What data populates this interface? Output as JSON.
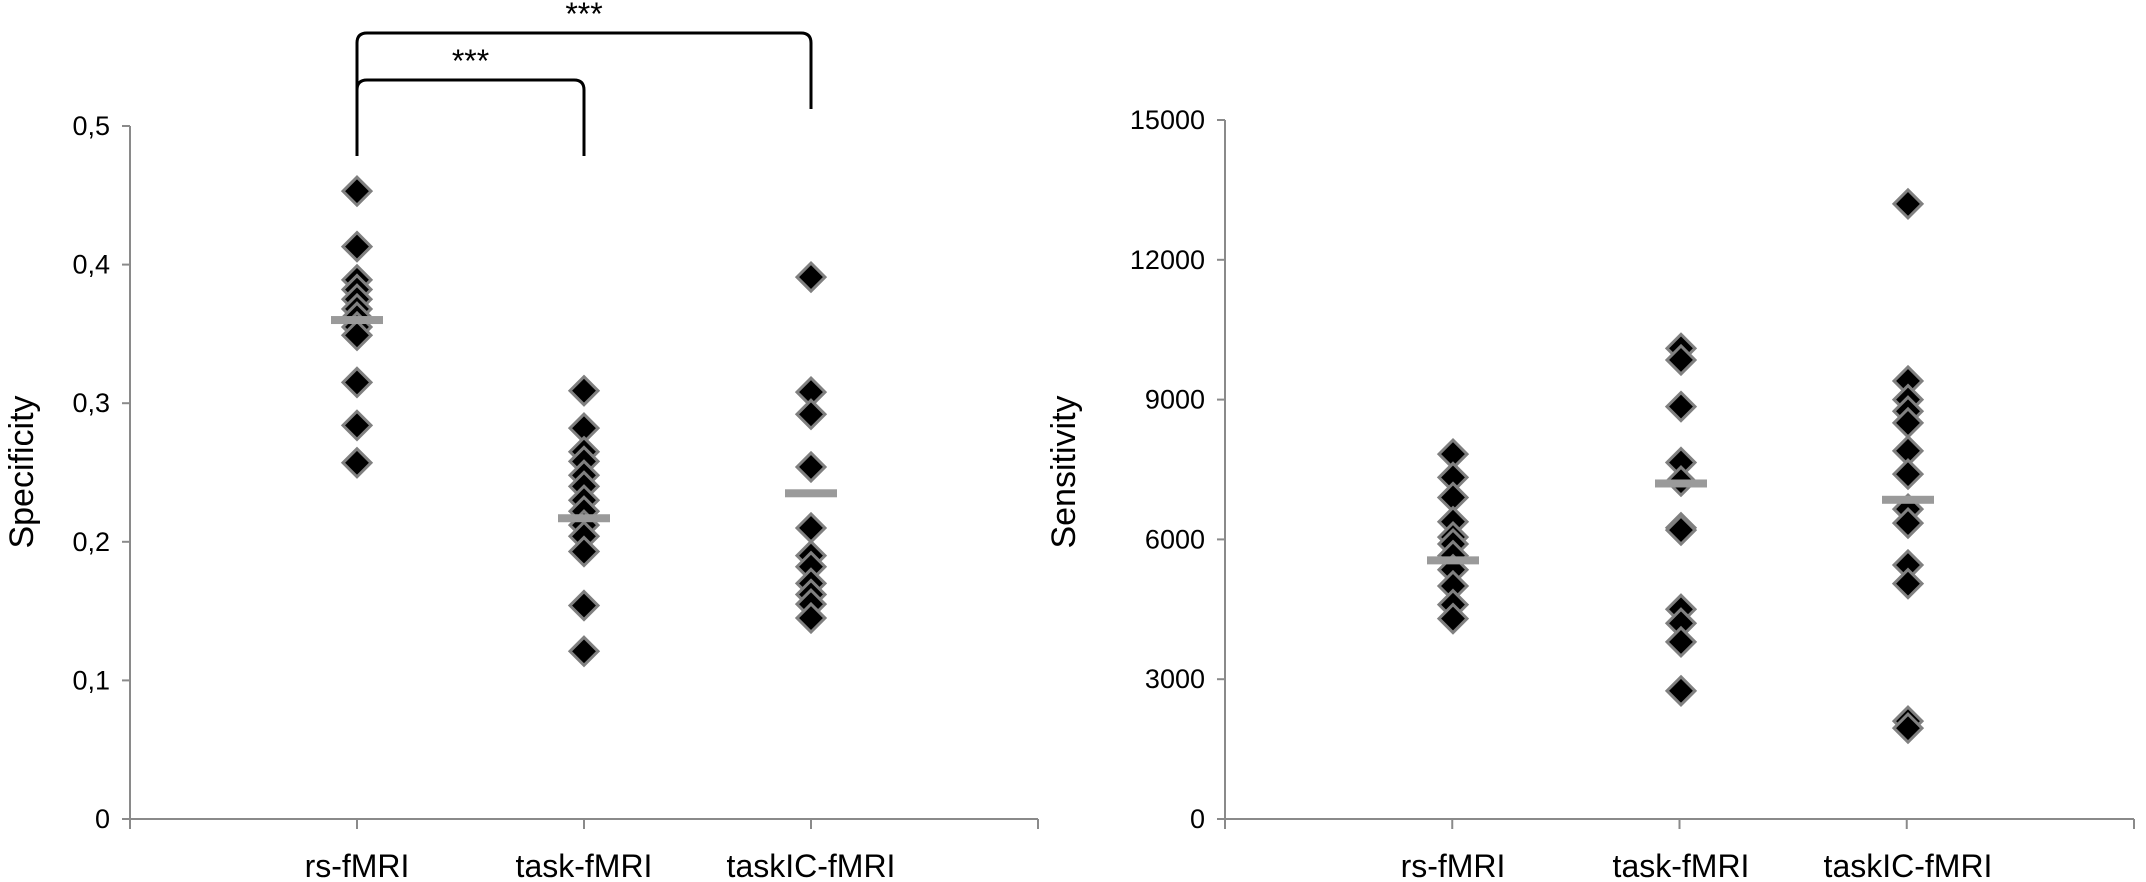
{
  "chart_data": [
    {
      "type": "scatter",
      "categories": [
        "rs-fMRI",
        "task-fMRI",
        "taskIC-fMRI"
      ],
      "ylabel": "Specificity",
      "ylim": [
        0,
        0.5
      ],
      "yticks": [
        0,
        0.1,
        0.2,
        0.3,
        0.4,
        0.5
      ],
      "ytick_labels": [
        "0",
        "0,1",
        "0,2",
        "0,3",
        "0,4",
        "0,5"
      ],
      "grid": false,
      "points": [
        [
          0.453,
          0.413,
          0.389,
          0.382,
          0.375,
          0.368,
          0.362,
          0.355,
          0.349,
          0.315,
          0.284,
          0.257
        ],
        [
          0.309,
          0.282,
          0.265,
          0.258,
          0.248,
          0.24,
          0.23,
          0.222,
          0.212,
          0.204,
          0.193,
          0.154,
          0.121
        ],
        [
          0.391,
          0.308,
          0.292,
          0.254,
          0.21,
          0.19,
          0.182,
          0.17,
          0.162,
          0.155,
          0.145
        ]
      ],
      "means": [
        0.36,
        0.217,
        0.235
      ],
      "significance": [
        {
          "from": 0,
          "to": 2,
          "label": "***"
        },
        {
          "from": 0,
          "to": 1,
          "label": "***"
        }
      ],
      "colors": {
        "marker": "#000000",
        "marker_edge": "#808080",
        "mean": "#9a9a9a",
        "axis": "#8a8a8a"
      }
    },
    {
      "type": "scatter",
      "categories": [
        "rs-fMRI",
        "task-fMRI",
        "taskIC-fMRI"
      ],
      "ylabel": "Sensitivity",
      "ylim": [
        0,
        15000
      ],
      "yticks": [
        0,
        3000,
        6000,
        9000,
        12000,
        15000
      ],
      "ytick_labels": [
        "0",
        "3000",
        "6000",
        "9000",
        "12000",
        "15000"
      ],
      "grid": false,
      "points": [
        [
          7830,
          7330,
          6900,
          6380,
          6050,
          5900,
          5650,
          5350,
          5000,
          4600,
          4300
        ],
        [
          10100,
          9850,
          8850,
          7650,
          7250,
          6250,
          6200,
          4500,
          4200,
          3800,
          2750
        ],
        [
          13200,
          9400,
          9000,
          8750,
          8500,
          7900,
          7400,
          6650,
          6350,
          5450,
          5050,
          2100,
          1950
        ]
      ],
      "means": [
        5550,
        7200,
        6850
      ],
      "colors": {
        "marker": "#000000",
        "marker_edge": "#808080",
        "mean": "#9a9a9a",
        "axis": "#8a8a8a"
      }
    }
  ]
}
